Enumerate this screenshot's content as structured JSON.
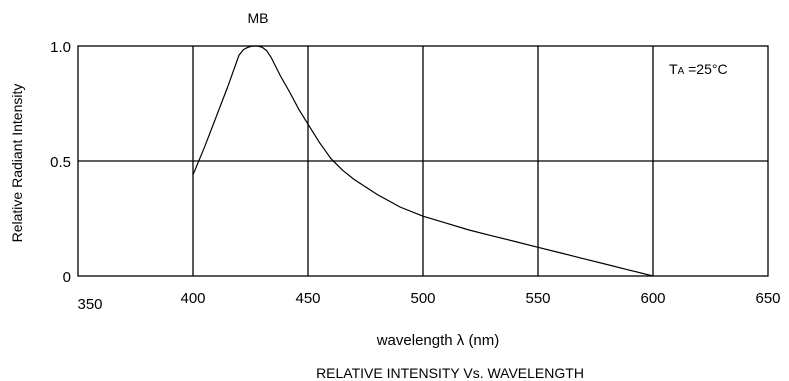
{
  "chart_data": {
    "type": "line",
    "title": "RELATIVE INTENSITY Vs. WAVELENGTH",
    "series_label": "MB",
    "annotation": {
      "prefix": "T",
      "subscript": "A",
      "text": " =25°C"
    },
    "xlabel": "wavelength λ (nm)",
    "ylabel": "Relative Radiant Intensity",
    "xlim": [
      350,
      650
    ],
    "ylim": [
      0,
      1.0
    ],
    "x_ticks": [
      "350",
      "400",
      "450",
      "500",
      "550",
      "600",
      "650"
    ],
    "y_ticks": [
      "0",
      "0.5",
      "1.0"
    ],
    "grid": true,
    "series": [
      {
        "x": [
          400,
          405,
          410,
          415,
          420,
          422,
          424,
          426,
          428,
          430,
          432,
          434,
          438,
          442,
          446,
          450,
          455,
          460,
          465,
          470,
          480,
          490,
          500,
          510,
          520,
          530,
          540,
          550,
          560,
          570,
          580,
          590,
          600
        ],
        "y": [
          0.44,
          0.56,
          0.69,
          0.82,
          0.96,
          0.985,
          0.995,
          1.0,
          1.0,
          0.995,
          0.98,
          0.95,
          0.87,
          0.8,
          0.725,
          0.66,
          0.58,
          0.51,
          0.46,
          0.42,
          0.355,
          0.3,
          0.26,
          0.23,
          0.2,
          0.175,
          0.15,
          0.125,
          0.1,
          0.075,
          0.05,
          0.025,
          0.0
        ]
      }
    ]
  }
}
